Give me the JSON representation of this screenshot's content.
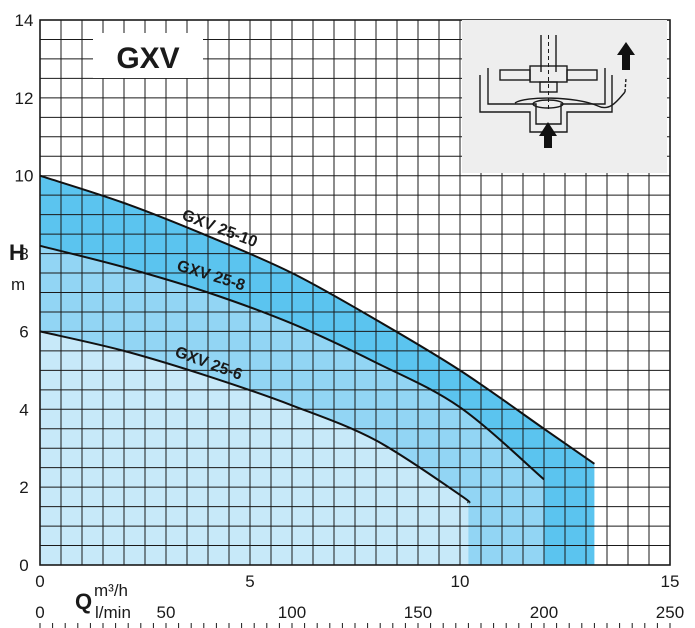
{
  "chart_data": {
    "type": "line",
    "title": "GXV",
    "ylabel": "H",
    "yunit": "m",
    "xlabel": "Q",
    "xunit_top": "m³/h",
    "xunit_bottom": "l/min",
    "xlim": [
      0,
      15
    ],
    "ylim": [
      0,
      14
    ],
    "yticks": [
      0,
      2,
      4,
      6,
      8,
      10,
      12,
      14
    ],
    "xticks_m3h": [
      0,
      5,
      10,
      15
    ],
    "xticks_lmin": [
      0,
      50,
      100,
      150,
      200,
      250
    ],
    "grid": true,
    "series": [
      {
        "name": "GXV 25-10",
        "color": "#5bc4ef",
        "x": [
          0,
          2,
          4,
          6,
          8,
          10,
          12,
          13.2
        ],
        "y": [
          10.0,
          9.3,
          8.45,
          7.5,
          6.3,
          5.0,
          3.5,
          2.6
        ]
      },
      {
        "name": "GXV 25-8",
        "color": "#92d5f4",
        "x": [
          0,
          2,
          4,
          6,
          8,
          10,
          12
        ],
        "y": [
          8.2,
          7.65,
          7.0,
          6.2,
          5.2,
          4.05,
          2.2
        ]
      },
      {
        "name": "GXV 25-6",
        "color": "#c7e9f9",
        "x": [
          0,
          2,
          4,
          6,
          8,
          10,
          10.2
        ],
        "y": [
          6.0,
          5.5,
          4.85,
          4.1,
          3.2,
          1.8,
          1.6
        ]
      }
    ]
  }
}
